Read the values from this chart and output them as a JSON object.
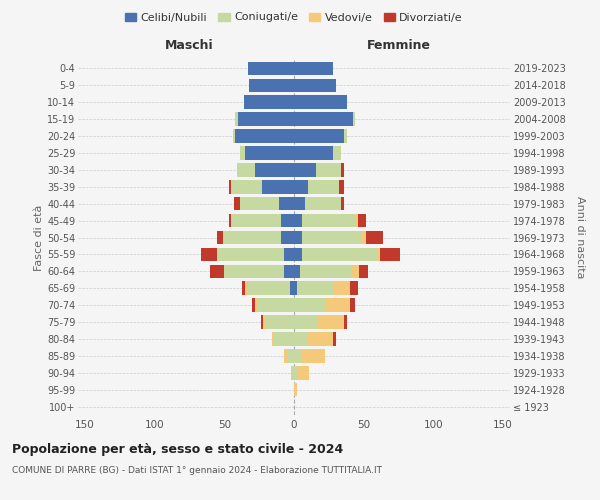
{
  "age_groups": [
    "100+",
    "95-99",
    "90-94",
    "85-89",
    "80-84",
    "75-79",
    "70-74",
    "65-69",
    "60-64",
    "55-59",
    "50-54",
    "45-49",
    "40-44",
    "35-39",
    "30-34",
    "25-29",
    "20-24",
    "15-19",
    "10-14",
    "5-9",
    "0-4"
  ],
  "birth_years": [
    "≤ 1923",
    "1924-1928",
    "1929-1933",
    "1934-1938",
    "1939-1943",
    "1944-1948",
    "1949-1953",
    "1954-1958",
    "1959-1963",
    "1964-1968",
    "1969-1973",
    "1974-1978",
    "1979-1983",
    "1984-1988",
    "1989-1993",
    "1994-1998",
    "1999-2003",
    "2004-2008",
    "2009-2013",
    "2014-2018",
    "2019-2023"
  ],
  "male_celibi": [
    0,
    0,
    0,
    0,
    0,
    0,
    0,
    3,
    7,
    7,
    9,
    9,
    11,
    23,
    28,
    35,
    42,
    40,
    36,
    32,
    33
  ],
  "male_coniugati": [
    0,
    0,
    2,
    5,
    14,
    20,
    26,
    30,
    43,
    48,
    42,
    36,
    28,
    22,
    13,
    4,
    2,
    2,
    0,
    0,
    0
  ],
  "male_vedovi": [
    0,
    0,
    0,
    2,
    2,
    2,
    2,
    2,
    0,
    0,
    0,
    0,
    0,
    0,
    0,
    0,
    0,
    0,
    0,
    0,
    0
  ],
  "male_divorziati": [
    0,
    0,
    0,
    0,
    0,
    2,
    2,
    2,
    10,
    12,
    4,
    2,
    4,
    2,
    0,
    0,
    0,
    0,
    0,
    0,
    0
  ],
  "female_nubili": [
    0,
    0,
    0,
    0,
    0,
    0,
    0,
    2,
    4,
    6,
    6,
    6,
    8,
    10,
    16,
    28,
    36,
    42,
    38,
    30,
    28
  ],
  "female_coniugate": [
    0,
    0,
    2,
    5,
    9,
    17,
    23,
    27,
    37,
    54,
    42,
    38,
    26,
    22,
    18,
    6,
    2,
    2,
    0,
    0,
    0
  ],
  "female_vedove": [
    0,
    2,
    9,
    17,
    19,
    19,
    17,
    11,
    6,
    2,
    4,
    2,
    0,
    0,
    0,
    0,
    0,
    0,
    0,
    0,
    0
  ],
  "female_divorziate": [
    0,
    0,
    0,
    0,
    2,
    2,
    4,
    6,
    6,
    14,
    12,
    6,
    2,
    4,
    2,
    0,
    0,
    0,
    0,
    0,
    0
  ],
  "color_celibi": "#4a72b0",
  "color_coniugati": "#c5d9a0",
  "color_vedovi": "#f5c97a",
  "color_divorziati": "#c0392b",
  "xlim": 155,
  "title": "Popolazione per età, sesso e stato civile - 2024",
  "subtitle": "COMUNE DI PARRE (BG) - Dati ISTAT 1° gennaio 2024 - Elaborazione TUTTITALIA.IT",
  "ylabel_left": "Fasce di età",
  "ylabel_right": "Anni di nascita",
  "label_maschi": "Maschi",
  "label_femmine": "Femmine",
  "legend_labels": [
    "Celibi/Nubili",
    "Coniugati/e",
    "Vedovi/e",
    "Divorziati/e"
  ],
  "bg_color": "#f5f5f5"
}
